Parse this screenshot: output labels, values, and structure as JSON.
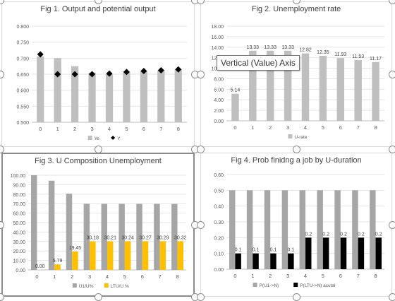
{
  "tooltip": "Vertical (Value) Axis",
  "colors": {
    "gray_bar": "#bfbfbf",
    "gold_bar": "#ffc000",
    "black_bar": "#000000",
    "marker": "#000000",
    "grid": "#e6e6e6",
    "axis_text": "#595959"
  },
  "chart_data": [
    {
      "id": "fig1",
      "type": "bar",
      "title": "Fig 1. Output and potential output",
      "categories": [
        "0",
        "1",
        "2",
        "3",
        "4",
        "5",
        "6",
        "7",
        "8"
      ],
      "ylim": [
        0.5,
        0.8
      ],
      "yticks": [
        "0.500",
        "0.550",
        "0.600",
        "0.650",
        "0.700",
        "0.750",
        "0.800"
      ],
      "series": [
        {
          "name": "Ye",
          "kind": "bar",
          "color": "#bfbfbf",
          "values": [
            0.705,
            0.7,
            0.675,
            0.655,
            0.65,
            0.658,
            0.66,
            0.662,
            0.665
          ]
        },
        {
          "name": "Y",
          "kind": "diamond",
          "color": "#000000",
          "values": [
            0.712,
            0.65,
            0.65,
            0.65,
            0.652,
            0.657,
            0.66,
            0.662,
            0.665
          ]
        }
      ],
      "legend": "bottom"
    },
    {
      "id": "fig2",
      "type": "bar",
      "title": "Fig 2. Unemployment rate",
      "categories": [
        "0",
        "1",
        "2",
        "3",
        "4",
        "5",
        "6",
        "7",
        "8"
      ],
      "ylim": [
        0,
        18
      ],
      "yticks": [
        "0.00",
        "2.00",
        "4.00",
        "6.00",
        "8.00",
        "10.00",
        "12.00",
        "14.00",
        "16.00",
        "18.00"
      ],
      "series": [
        {
          "name": "U-rate",
          "kind": "bar",
          "color": "#bfbfbf",
          "values": [
            5.14,
            13.33,
            13.33,
            13.33,
            12.82,
            12.35,
            11.93,
            11.53,
            11.17
          ],
          "labels": [
            "5.14",
            "13.33",
            "13.33",
            "13.33",
            "12.82",
            "12.35",
            "11.93",
            "11.53",
            "11.17"
          ]
        }
      ],
      "legend": "bottom"
    },
    {
      "id": "fig3",
      "type": "bar",
      "title": "Fig 3. U Composition Unemployment",
      "categories": [
        "0",
        "1",
        "2",
        "3",
        "4",
        "5",
        "6",
        "7",
        "8"
      ],
      "ylim": [
        0,
        100
      ],
      "yticks": [
        "0.00",
        "10.00",
        "20.00",
        "30.00",
        "40.00",
        "50.00",
        "60.00",
        "70.00",
        "80.00",
        "90.00",
        "100.00"
      ],
      "series": [
        {
          "name": "U1/U%",
          "kind": "bar",
          "color": "#a6a6a6",
          "values": [
            100,
            94.21,
            80.55,
            69.82,
            69.79,
            69.76,
            69.73,
            69.71,
            69.68
          ]
        },
        {
          "name": "LTU/U %",
          "kind": "bar",
          "color": "#ffc000",
          "values": [
            0,
            5.79,
            19.45,
            30.18,
            30.21,
            30.24,
            30.27,
            30.29,
            30.32
          ],
          "labels": [
            "0.00",
            "5.79",
            "19.45",
            "30.18",
            "30.21",
            "30.24",
            "30.27",
            "30.29",
            "30.32"
          ]
        }
      ],
      "legend": "bottom"
    },
    {
      "id": "fig4",
      "type": "bar",
      "title": "Fig 4. Prob finidng a job by U-duration",
      "categories": [
        "0",
        "1",
        "2",
        "3",
        "4",
        "5",
        "6",
        "7",
        "8"
      ],
      "ylim": [
        0,
        0.6
      ],
      "yticks": [
        "0.00",
        "0.10",
        "0.20",
        "0.30",
        "0.40",
        "0.50",
        "0.60"
      ],
      "series": [
        {
          "name": "P(U1->N)",
          "kind": "bar",
          "color": "#a6a6a6",
          "values": [
            0.5,
            0.5,
            0.5,
            0.5,
            0.5,
            0.5,
            0.5,
            0.5,
            0.5
          ]
        },
        {
          "name": "P(LTU->N) acutal",
          "kind": "bar",
          "color": "#000000",
          "values": [
            0.1,
            0.1,
            0.1,
            0.1,
            0.2,
            0.2,
            0.2,
            0.2,
            0.2
          ],
          "labels": [
            "0.1",
            "0.1",
            "0.1",
            "0.1",
            "0.2",
            "0.2",
            "0.2",
            "0.2",
            "0.2"
          ]
        }
      ],
      "legend": "bottom"
    }
  ]
}
